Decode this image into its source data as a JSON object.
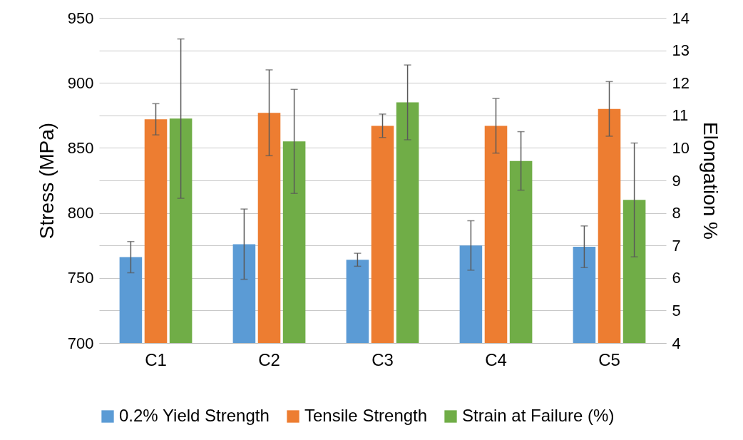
{
  "chart_data": {
    "type": "bar",
    "ylabel": "Stress (MPa)",
    "y2label": "Elongation %",
    "categories": [
      "C1",
      "C2",
      "C3",
      "C4",
      "C5"
    ],
    "series": [
      {
        "name": "0.2% Yield Strength",
        "color": "#5b9bd5",
        "values": [
          766,
          776,
          764,
          775,
          774
        ],
        "errors": [
          12,
          27,
          5,
          19,
          16
        ]
      },
      {
        "name": "Tensile Strength",
        "color": "#ed7d31",
        "values": [
          872,
          877,
          867,
          867,
          880
        ],
        "errors": [
          12,
          33,
          9,
          21,
          21
        ]
      },
      {
        "name": "Strain at Failure (%)",
        "color": "#70ad47",
        "axis": "y2",
        "values": [
          10.9,
          10.2,
          11.4,
          9.6,
          8.4
        ],
        "errors": [
          2.45,
          1.6,
          1.15,
          0.9,
          1.75
        ]
      }
    ],
    "ylim": [
      700,
      950
    ],
    "yticks": [
      700,
      {
        "value": 725,
        "label": null
      },
      750,
      {
        "value": 775,
        "label": null
      },
      800,
      {
        "value": 825,
        "label": null
      },
      850,
      {
        "value": 875,
        "label": null
      },
      900,
      {
        "value": 925,
        "label": null
      },
      950
    ],
    "y2lim": [
      4,
      14
    ],
    "y2ticks": [
      4,
      5,
      6,
      7,
      8,
      9,
      10,
      11,
      12,
      13,
      14
    ],
    "grid": "y",
    "legend": "bottom"
  }
}
